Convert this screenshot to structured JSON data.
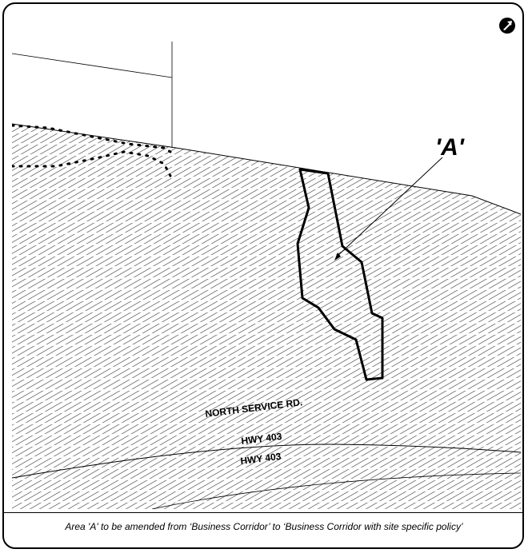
{
  "map": {
    "area_label": "'A'",
    "roads": {
      "north_service": "NORTH SERVICE RD.",
      "hwy_upper": "HWY 403",
      "hwy_lower": "HWY 403"
    },
    "north_arrow_icon": "north-arrow-icon",
    "colors": {
      "line": "#000000",
      "hatch": "#333333",
      "background": "#ffffff"
    }
  },
  "caption": "Area 'A' to be amended from ‘Business Corridor’  to ‘Business Corridor with site specific policy’"
}
